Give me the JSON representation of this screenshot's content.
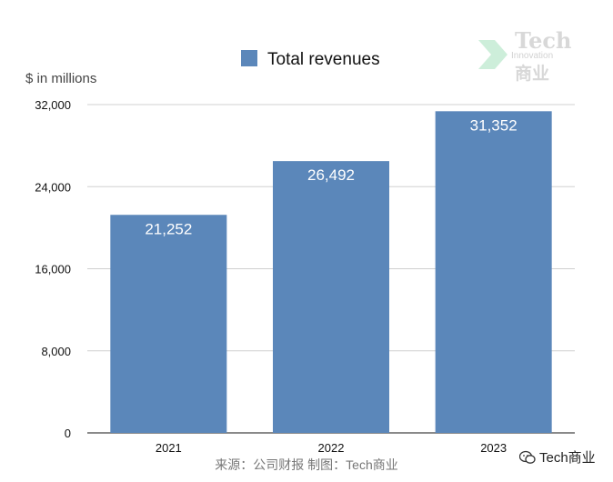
{
  "chart_data": {
    "type": "bar",
    "legend": "Total revenues",
    "legend_position": "top",
    "ylabel": "$ in millions",
    "categories": [
      "2021",
      "2022",
      "2023"
    ],
    "values": [
      21252,
      26492,
      31352
    ],
    "value_labels": [
      "21,252",
      "26,492",
      "31,352"
    ],
    "ylim": [
      0,
      32000
    ],
    "yticks": [
      0,
      8000,
      16000,
      24000,
      32000
    ],
    "ytick_labels": [
      "0",
      "8,000",
      "16,000",
      "24,000",
      "32,000"
    ],
    "grid": true,
    "bar_color": "#5b87ba"
  },
  "source_text": "来源：公司财报 制图：Tech商业",
  "watermark": {
    "brand": "Tech",
    "tagline": "Innovation",
    "brand_cn": "商业",
    "logo_color": "#c8ecd6"
  },
  "footer_brand": {
    "icon": "wechat-icon",
    "text": "Tech商业"
  }
}
